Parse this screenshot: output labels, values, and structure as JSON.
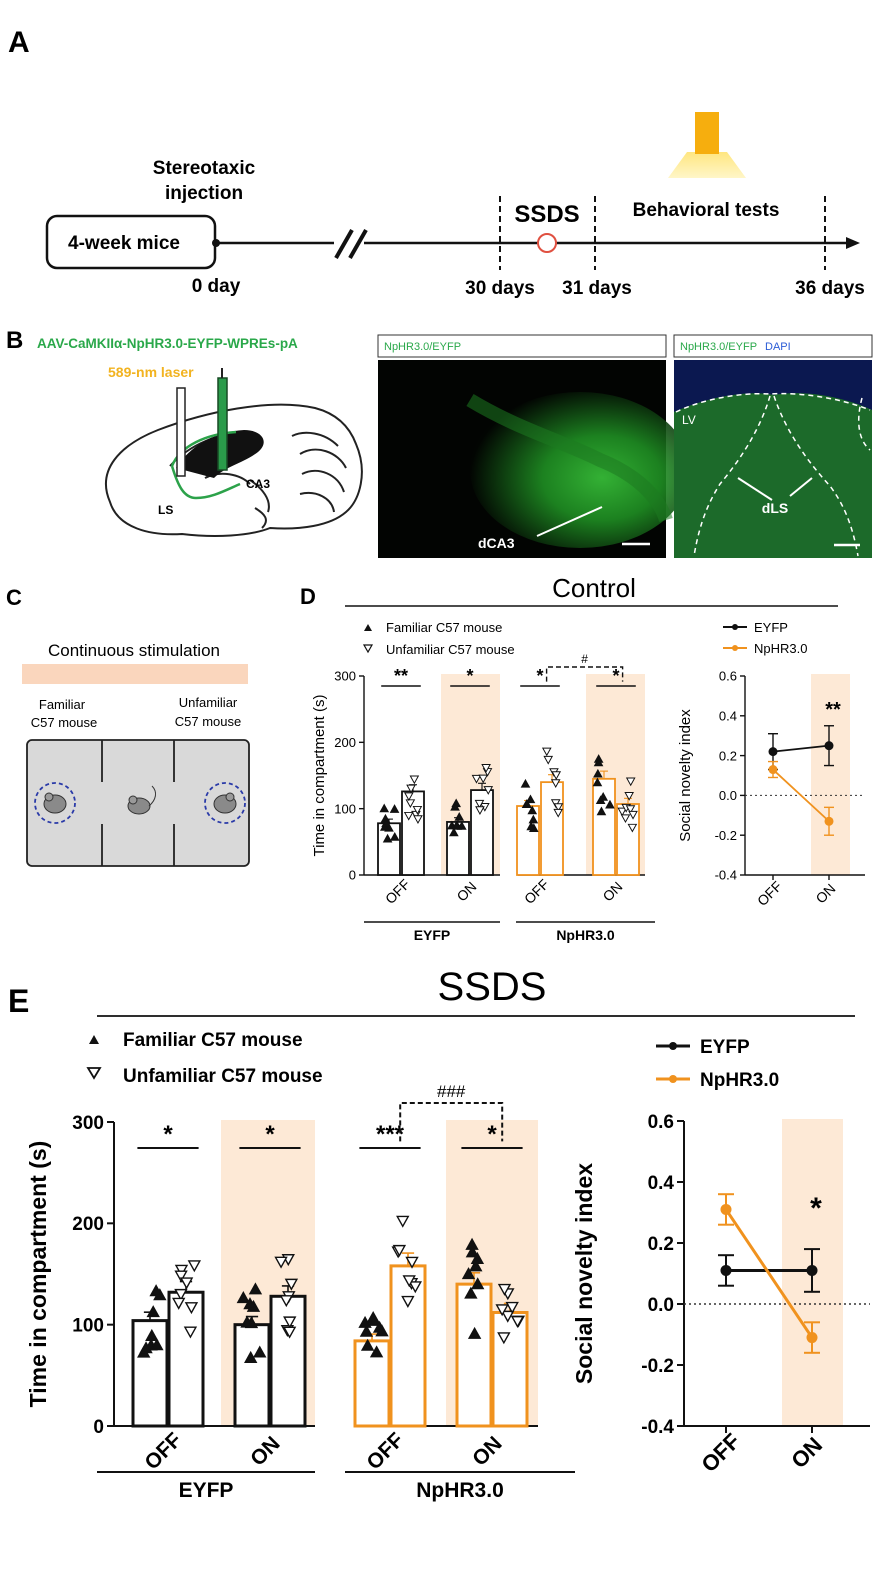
{
  "panel_A": {
    "letter": "A",
    "start_box": "4-week mice",
    "injection": [
      "Stereotaxic",
      "injection"
    ],
    "ssds": "SSDS",
    "behavioral": "Behavioral tests",
    "days": [
      "0 day",
      "30 days",
      "31 days",
      "36 days"
    ]
  },
  "panel_B": {
    "letter": "B",
    "virus": "AAV-CaMKIIα-NpHR3.0-EYFP-WPREs-pA",
    "laser": "589-nm laser",
    "brain_labels": [
      "CA3",
      "LS"
    ],
    "img1_title": "NpHR3.0/EYFP",
    "img1_region": "dCA3",
    "img2_title_a": "NpHR3.0/EYFP",
    "img2_title_b": "DAPI",
    "img2_lv": "LV",
    "img2_region": "dLS"
  },
  "panel_C": {
    "letter": "C",
    "title": "Continuous stimulation",
    "left_label": [
      "Familiar",
      "C57 mouse"
    ],
    "right_label": [
      "Unfamiliar",
      "C57 mouse"
    ]
  },
  "panel_D": {
    "letter": "D",
    "title": "Control",
    "legend_familiar": "Familiar C57 mouse",
    "legend_unfamiliar": "Unfamiliar C57 mouse",
    "legend_eyfp": "EYFP",
    "legend_nphr": "NpHR3.0"
  },
  "panel_E": {
    "letter": "E",
    "title": "SSDS",
    "legend_familiar": "Familiar C57 mouse",
    "legend_unfamiliar": "Unfamiliar C57 mouse",
    "legend_eyfp": "EYFP",
    "legend_nphr": "NpHR3.0"
  },
  "colors": {
    "eyfp": "#111111",
    "nphr": "#f0921e",
    "shade": "#fde9d6"
  },
  "chart_data": [
    {
      "id": "D-bars",
      "type": "bar",
      "ylabel": "Time in compartment (s)",
      "ylim": [
        0,
        300
      ],
      "yticks": [
        0,
        100,
        200,
        300
      ],
      "groups": [
        "EYFP",
        "NpHR3.0"
      ],
      "categories": [
        "OFF",
        "ON",
        "OFF",
        "ON"
      ],
      "series": [
        {
          "name": "Familiar C57 mouse",
          "values": [
            78,
            80,
            104,
            145
          ]
        },
        {
          "name": "Unfamiliar C57 mouse",
          "values": [
            126,
            128,
            140,
            107
          ]
        }
      ],
      "significance": [
        "**",
        "*",
        "*",
        "*"
      ],
      "between_marker": "#"
    },
    {
      "id": "D-index",
      "type": "line",
      "ylabel": "Social novelty index",
      "ylim": [
        -0.4,
        0.6
      ],
      "yticks": [
        -0.4,
        -0.2,
        0.0,
        0.2,
        0.4,
        0.6
      ],
      "categories": [
        "OFF",
        "ON"
      ],
      "series": [
        {
          "name": "EYFP",
          "values": [
            0.22,
            0.25
          ],
          "errors": [
            0.09,
            0.1
          ]
        },
        {
          "name": "NpHR3.0",
          "values": [
            0.13,
            -0.13
          ],
          "errors": [
            0.04,
            0.07
          ]
        }
      ],
      "significance": "**"
    },
    {
      "id": "E-bars",
      "type": "bar",
      "ylabel": "Time in compartment (s)",
      "ylim": [
        0,
        300
      ],
      "yticks": [
        0,
        100,
        200,
        300
      ],
      "groups": [
        "EYFP",
        "NpHR3.0"
      ],
      "categories": [
        "OFF",
        "ON",
        "OFF",
        "ON"
      ],
      "series": [
        {
          "name": "Familiar C57 mouse",
          "values": [
            104,
            100,
            84,
            140
          ]
        },
        {
          "name": "Unfamiliar C57 mouse",
          "values": [
            132,
            128,
            158,
            112
          ]
        }
      ],
      "significance": [
        "*",
        "*",
        "***",
        "*"
      ],
      "between_marker": "###"
    },
    {
      "id": "E-index",
      "type": "line",
      "ylabel": "Social novelty index",
      "ylim": [
        -0.4,
        0.6
      ],
      "yticks": [
        -0.4,
        -0.2,
        0.0,
        0.2,
        0.4,
        0.6
      ],
      "categories": [
        "OFF",
        "ON"
      ],
      "series": [
        {
          "name": "EYFP",
          "values": [
            0.11,
            0.11
          ],
          "errors": [
            0.05,
            0.07
          ]
        },
        {
          "name": "NpHR3.0",
          "values": [
            0.31,
            -0.11
          ],
          "errors": [
            0.05,
            0.05
          ]
        }
      ],
      "significance": "*"
    }
  ]
}
